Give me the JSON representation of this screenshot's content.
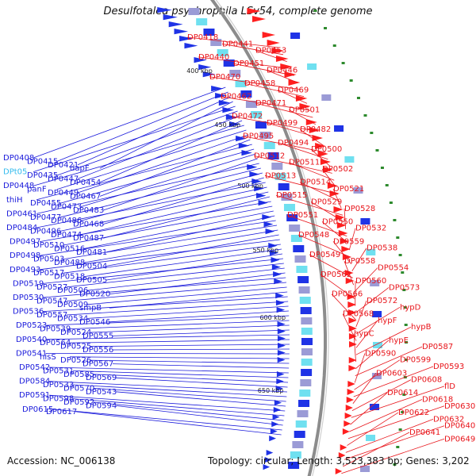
{
  "title": "Desulfotalea psychrophila LSv54, complete genome",
  "footer": {
    "accession": "Accession: NC_006138",
    "topology": "Topology: circular; Length: 3,523,383 bp; Genes: 3,202"
  },
  "colors": {
    "left_labels": "#1a1adb",
    "right_labels": "#e8141a",
    "rna_label": "#33bbee",
    "backbone": "#8c8c8c",
    "tick_marks": "#2d8a2d"
  },
  "kbp_marks": [
    "400 kbp",
    "450 kbp",
    "500 kbp",
    "550 kbp",
    "600 kbp",
    "650 kbp"
  ],
  "left_labels": [
    "DP0408",
    "DP0415",
    "DP0421",
    "dapF",
    "DPt05",
    "DP0435",
    "DP0447",
    "DP0454",
    "DP0448",
    "panF",
    "DP0449",
    "DP0467",
    "thiH",
    "DP0455",
    "DP0473",
    "DP0483",
    "DP0461",
    "DP0477",
    "DP0486",
    "DP0468",
    "DP0484",
    "DP0496",
    "DP0474",
    "DP0487",
    "DP0497",
    "DP0510",
    "DP0516",
    "DP0481",
    "DP0498",
    "DP0503",
    "DP0488",
    "DP0504",
    "DP0493",
    "DP0517",
    "DP0518",
    "DP0505",
    "DP0519",
    "DP0527",
    "DP0506",
    "DP0520",
    "DP0530",
    "DP0547",
    "DP0509",
    "smpB",
    "DP0536",
    "DP0557",
    "DP0534",
    "DP0546",
    "DP0523",
    "DP0539",
    "DP0524",
    "DP0555",
    "DP0540",
    "DP0564",
    "DP0525",
    "DP0556",
    "DP0541",
    "hisS",
    "DP0526",
    "DP0567",
    "DP0542",
    "DP0531",
    "DP0585",
    "DP0569",
    "DP0584",
    "DP0533",
    "DP0570",
    "DP0543",
    "DP0591",
    "DP0598",
    "DP0592",
    "DP0594",
    "DP0615",
    "DP0617"
  ],
  "right_labels": [
    "DP0418",
    "DP0441",
    "DP0453",
    "DP0440",
    "DP0451",
    "DP0446",
    "DP0470",
    "DP0458",
    "DP0469",
    "DP0462",
    "DP0471",
    "DP0501",
    "DP0472",
    "DP0499",
    "DP0482",
    "DP0495",
    "DP0494",
    "DP0500",
    "DP0512",
    "DP0511",
    "DP0502",
    "DP0513",
    "DP0514",
    "DP0521",
    "DP0515",
    "DP0529",
    "DP0528",
    "DP0551",
    "DP0550",
    "DP0532",
    "DP0548",
    "DP0559",
    "DP0538",
    "DP0549",
    "DP0558",
    "DP0554",
    "DP0562",
    "DP0560",
    "DP0573",
    "DP0566",
    "DP0572",
    "hypD",
    "DP0568",
    "hypF",
    "hypB",
    "hypC",
    "hypE",
    "DP0587",
    "DP0590",
    "DP0599",
    "DP0593",
    "DP0603",
    "DP0608",
    "flD",
    "DP0614",
    "DP0618",
    "DP0630",
    "DP0622",
    "DP0632",
    "DP0640",
    "DP0641",
    "DP0649"
  ]
}
